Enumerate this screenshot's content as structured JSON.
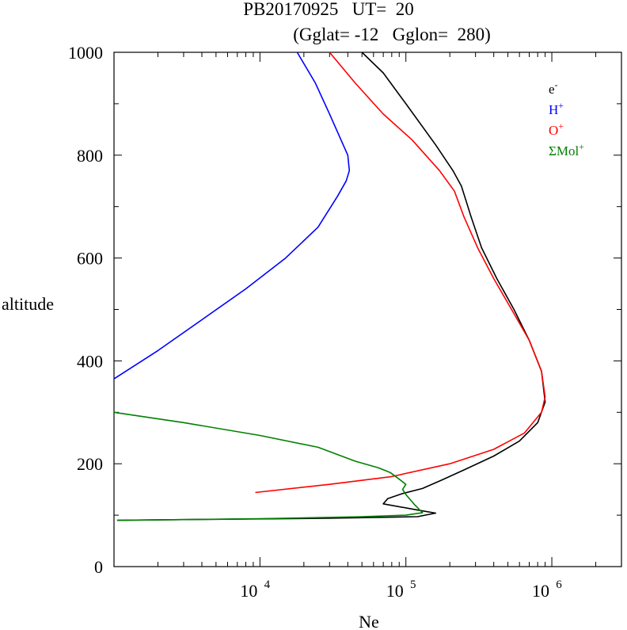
{
  "chart_data": {
    "type": "line",
    "title": "PB20170925   UT=  20",
    "subtitle": "(Gglat= -12   Gglon=  280)",
    "xlabel": "Ne",
    "ylabel": "altitude",
    "x_scale": "log",
    "xlim": [
      1000,
      3000000
    ],
    "ylim": [
      0,
      1000
    ],
    "yticks": [
      "0",
      "200",
      "400",
      "600",
      "800",
      "1000"
    ],
    "xticks": [
      {
        "value": 10000,
        "base": "10",
        "exp": "4"
      },
      {
        "value": 100000,
        "base": "10",
        "exp": "5"
      },
      {
        "value": 1000000,
        "base": "10",
        "exp": "6"
      }
    ],
    "legend_position": "top-right",
    "series": [
      {
        "name": "e",
        "sup": "-",
        "color": "#000000",
        "points": [
          [
            1050,
            90
          ],
          [
            5000,
            92
          ],
          [
            30000,
            94
          ],
          [
            120000,
            97
          ],
          [
            160000,
            104
          ],
          [
            120000,
            110
          ],
          [
            70000,
            122
          ],
          [
            75000,
            132
          ],
          [
            95000,
            142
          ],
          [
            130000,
            152
          ],
          [
            175000,
            168
          ],
          [
            250000,
            188
          ],
          [
            400000,
            215
          ],
          [
            600000,
            244
          ],
          [
            800000,
            280
          ],
          [
            900000,
            320
          ],
          [
            850000,
            380
          ],
          [
            700000,
            440
          ],
          [
            550000,
            500
          ],
          [
            420000,
            560
          ],
          [
            330000,
            620
          ],
          [
            280000,
            680
          ],
          [
            240000,
            740
          ],
          [
            210000,
            770
          ],
          [
            160000,
            820
          ],
          [
            100000,
            900
          ],
          [
            70000,
            960
          ],
          [
            50000,
            1000
          ]
        ]
      },
      {
        "name": "H",
        "sup": "+",
        "color": "#0000ff",
        "points": [
          [
            1000,
            365
          ],
          [
            2000,
            420
          ],
          [
            4000,
            480
          ],
          [
            8000,
            540
          ],
          [
            15000,
            600
          ],
          [
            25000,
            660
          ],
          [
            34000,
            720
          ],
          [
            39000,
            750
          ],
          [
            41000,
            770
          ],
          [
            40000,
            800
          ],
          [
            30000,
            880
          ],
          [
            24000,
            940
          ],
          [
            18000,
            1000
          ]
        ]
      },
      {
        "name": "O",
        "sup": "+",
        "color": "#ff0000",
        "points": [
          [
            9300,
            144
          ],
          [
            30000,
            160
          ],
          [
            80000,
            175
          ],
          [
            200000,
            200
          ],
          [
            400000,
            228
          ],
          [
            650000,
            260
          ],
          [
            850000,
            300
          ],
          [
            900000,
            330
          ],
          [
            850000,
            380
          ],
          [
            700000,
            440
          ],
          [
            530000,
            500
          ],
          [
            400000,
            560
          ],
          [
            310000,
            620
          ],
          [
            250000,
            680
          ],
          [
            215000,
            730
          ],
          [
            170000,
            770
          ],
          [
            110000,
            830
          ],
          [
            70000,
            880
          ],
          [
            45000,
            940
          ],
          [
            30000,
            1000
          ]
        ]
      },
      {
        "name": "ΣMol",
        "sup": "+",
        "color": "#008000",
        "points": [
          [
            1000,
            300
          ],
          [
            3000,
            280
          ],
          [
            10000,
            255
          ],
          [
            25000,
            232
          ],
          [
            45000,
            205
          ],
          [
            65000,
            192
          ],
          [
            78000,
            183
          ],
          [
            90000,
            170
          ],
          [
            100000,
            160
          ],
          [
            95000,
            150
          ],
          [
            100000,
            140
          ],
          [
            115000,
            120
          ],
          [
            130000,
            105
          ],
          [
            100000,
            100
          ],
          [
            50000,
            97
          ],
          [
            10000,
            93
          ],
          [
            1050,
            90
          ]
        ]
      }
    ]
  }
}
